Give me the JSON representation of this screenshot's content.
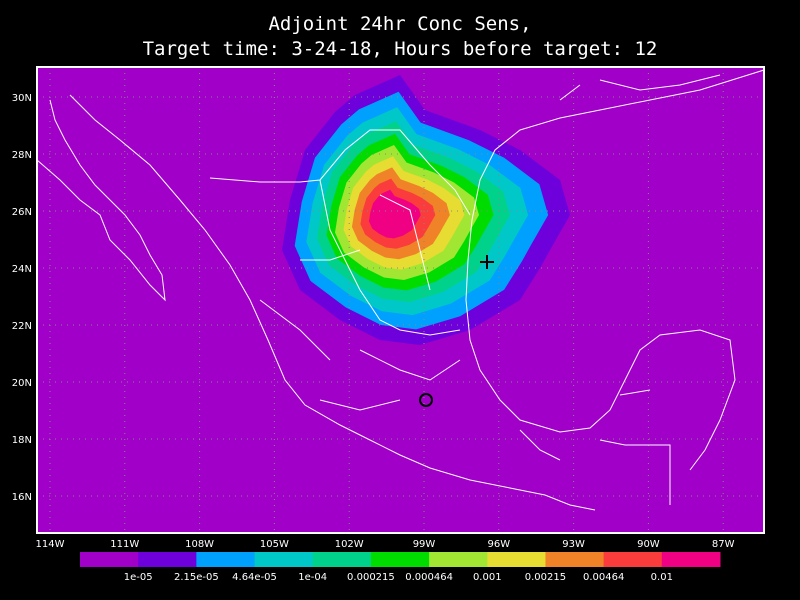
{
  "title": [
    "Adjoint 24hr Conc Sens,",
    "Target time: 3-24-18, Hours before target: 12"
  ],
  "map": {
    "lon_ticks": [
      "114W",
      "111W",
      "108W",
      "105W",
      "102W",
      "99W",
      "96W",
      "93W",
      "90W",
      "87W"
    ],
    "lat_ticks": [
      "30N",
      "28N",
      "26N",
      "24N",
      "22N",
      "20N",
      "18N",
      "16N"
    ]
  },
  "colorbar": {
    "colors": [
      "#a000c8",
      "#6e00dc",
      "#00a0ff",
      "#00c8c8",
      "#00d28c",
      "#00dc00",
      "#a0e632",
      "#e6dc32",
      "#f08228",
      "#fa3c3c",
      "#f00082"
    ],
    "labels": [
      "1e-05",
      "2.15e-05",
      "4.64e-05",
      "1e-04",
      "0.000215",
      "0.000464",
      "0.001",
      "0.00215",
      "0.00464",
      "0.01"
    ]
  }
}
